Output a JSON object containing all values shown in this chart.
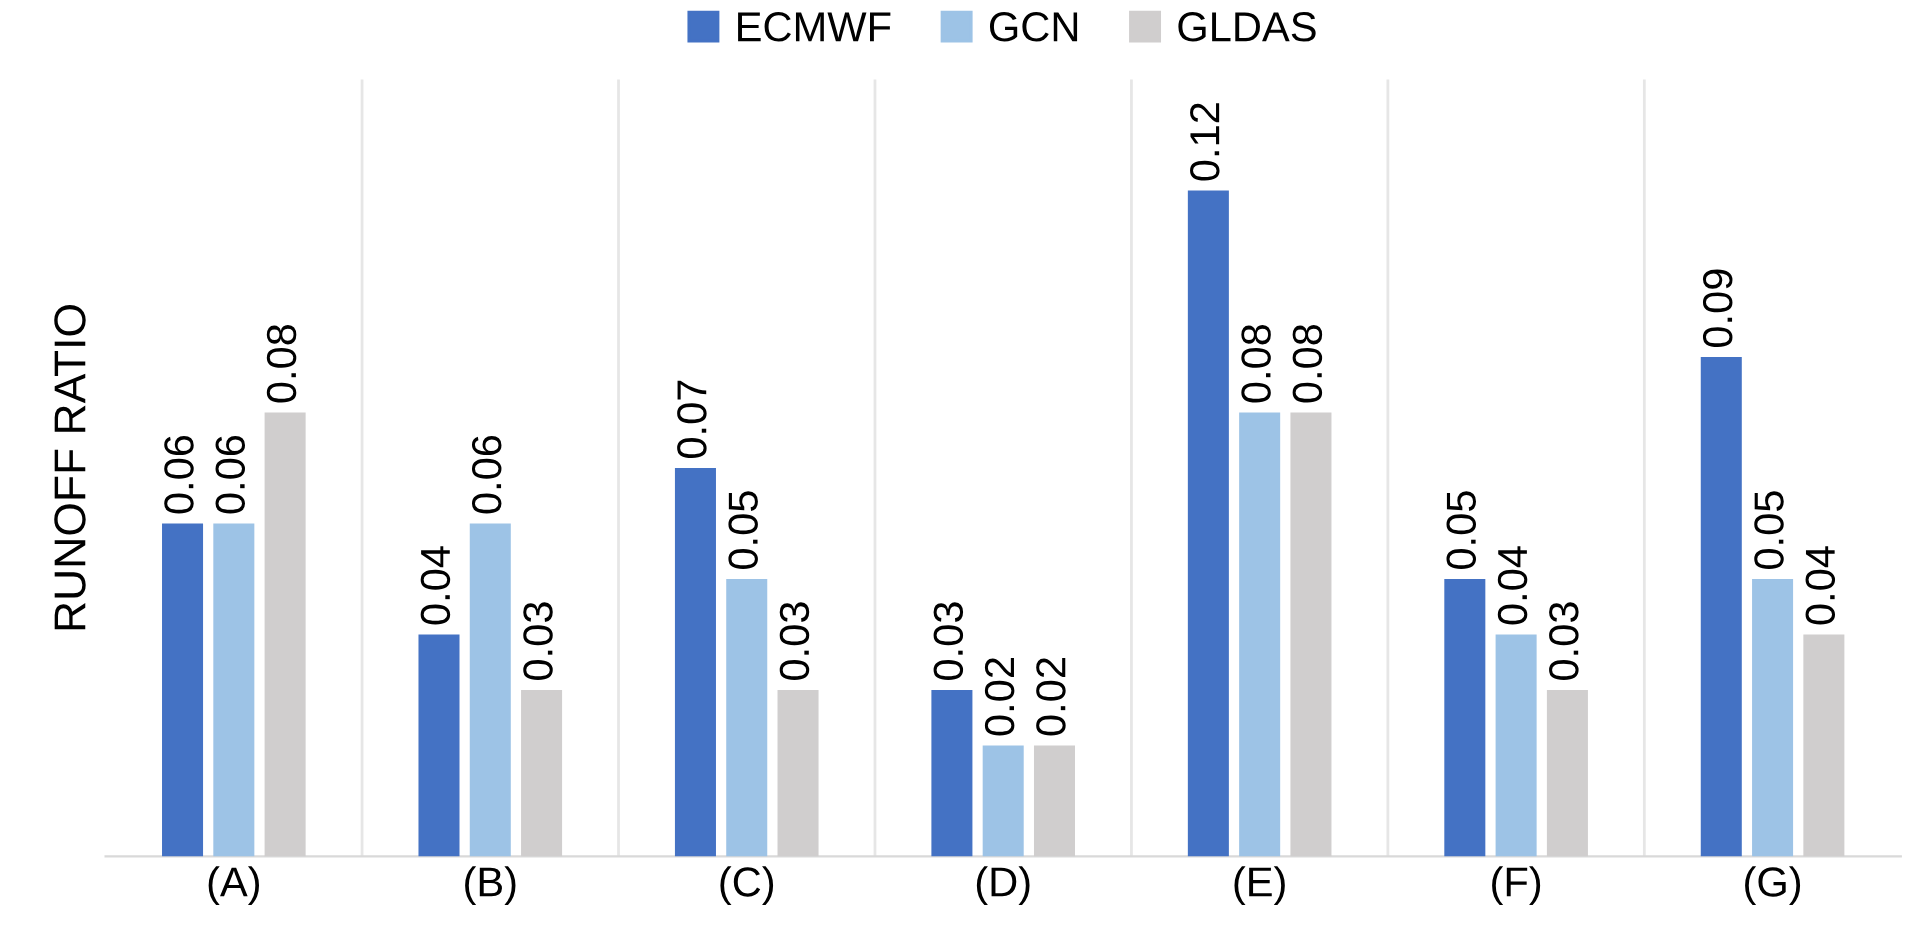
{
  "chart_data": {
    "type": "bar",
    "ylabel": "RUNOFF RATIO",
    "categories": [
      "(A)",
      "(B)",
      "(C)",
      "(D)",
      "(E)",
      "(F)",
      "(G)"
    ],
    "series": [
      {
        "name": "ECMWF",
        "color": "#4472c4",
        "values": [
          0.06,
          0.04,
          0.07,
          0.03,
          0.12,
          0.05,
          0.09
        ]
      },
      {
        "name": "GCN",
        "color": "#9dc3e6",
        "values": [
          0.06,
          0.06,
          0.05,
          0.02,
          0.08,
          0.04,
          0.05
        ]
      },
      {
        "name": "GLDAS",
        "color": "#d0cece",
        "values": [
          0.08,
          0.03,
          0.03,
          0.02,
          0.08,
          0.03,
          0.04
        ]
      }
    ],
    "ylim": [
      0,
      0.14
    ],
    "tick_labels": "x",
    "data_labels": true,
    "grid": "x",
    "legend": "top"
  }
}
